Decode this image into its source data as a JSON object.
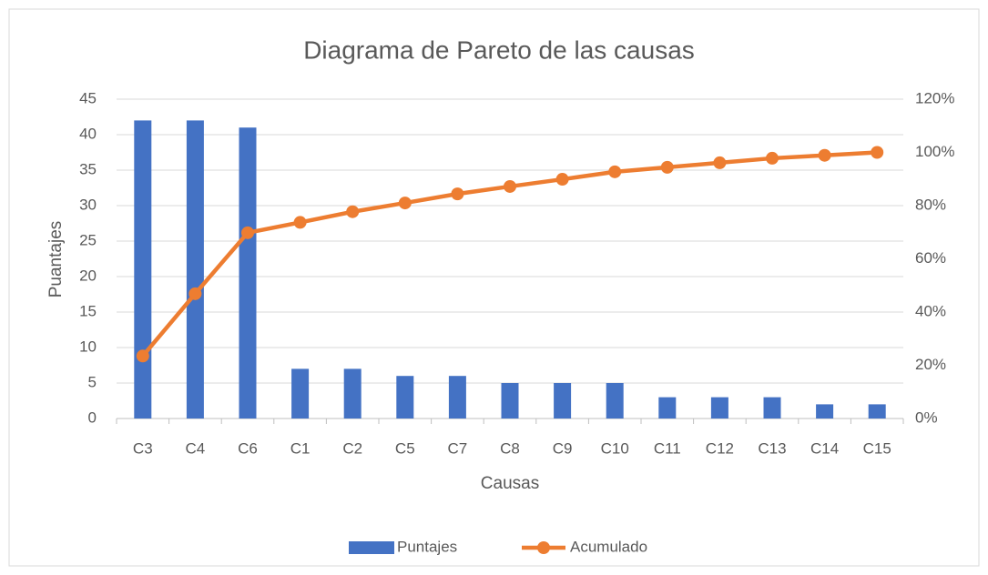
{
  "chart_data": {
    "type": "bar",
    "title": "Diagrama de Pareto de las causas",
    "x_label": "Causas",
    "y_label": "Puantajes",
    "categories": [
      "C3",
      "C4",
      "C6",
      "C1",
      "C2",
      "C5",
      "C7",
      "C8",
      "C9",
      "C10",
      "C11",
      "C12",
      "C13",
      "C14",
      "C15"
    ],
    "series": [
      {
        "name": "Puntajes",
        "type": "bar",
        "color": "#4472c4",
        "values": [
          42,
          42,
          41,
          7,
          7,
          6,
          6,
          5,
          5,
          5,
          3,
          3,
          3,
          2,
          2
        ]
      },
      {
        "name": "Acumulado",
        "type": "line",
        "axis": "y2",
        "color": "#ed7d31",
        "values": [
          23.5,
          46.9,
          69.8,
          73.7,
          77.7,
          81.0,
          84.4,
          87.2,
          89.9,
          92.7,
          94.4,
          96.1,
          97.8,
          98.9,
          100
        ]
      }
    ],
    "ylim": [
      0,
      45
    ],
    "yticks": [
      0,
      5,
      10,
      15,
      20,
      25,
      30,
      35,
      40,
      45
    ],
    "y2lim": [
      0,
      120
    ],
    "y2ticks": [
      {
        "value": 0,
        "label": "0%"
      },
      {
        "value": 20,
        "label": "20%"
      },
      {
        "value": 40,
        "label": "40%"
      },
      {
        "value": 60,
        "label": "60%"
      },
      {
        "value": 80,
        "label": "80%"
      },
      {
        "value": 100,
        "label": "100%"
      },
      {
        "value": 120,
        "label": "120%"
      }
    ],
    "grid": true,
    "legend": "bottom"
  }
}
